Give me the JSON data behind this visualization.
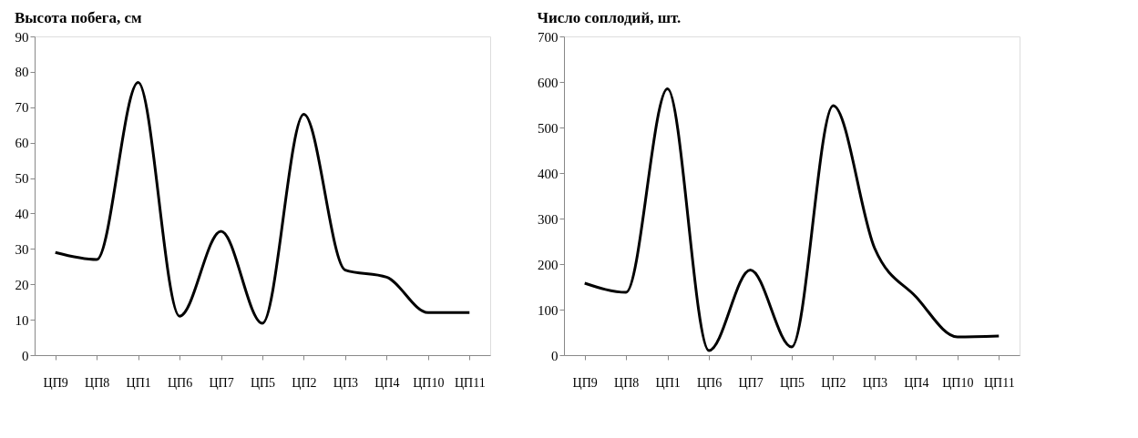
{
  "chart_data": [
    {
      "type": "line",
      "title": "Высота побега, см",
      "categories": [
        "ЦП9",
        "ЦП8",
        "ЦП1",
        "ЦП6",
        "ЦП7",
        "ЦП5",
        "ЦП2",
        "ЦП3",
        "ЦП4",
        "ЦП10",
        "ЦП11"
      ],
      "series": [
        {
          "color": "#000000",
          "values": [
            29,
            27,
            77,
            11,
            35,
            9,
            68,
            24,
            22,
            12,
            12
          ]
        }
      ],
      "ylim": [
        0,
        90
      ],
      "yticks": [
        0,
        10,
        20,
        30,
        40,
        50,
        60,
        70,
        80,
        90
      ],
      "grid": false,
      "marker": "none",
      "line_style": "solid"
    },
    {
      "type": "line",
      "title": "Число соплодий, шт.",
      "categories": [
        "ЦП9",
        "ЦП8",
        "ЦП1",
        "ЦП6",
        "ЦП7",
        "ЦП5",
        "ЦП2",
        "ЦП3",
        "ЦП4",
        "ЦП10",
        "ЦП11"
      ],
      "series": [
        {
          "color": "#000000",
          "values": [
            158,
            138,
            585,
            10,
            187,
            18,
            548,
            235,
            128,
            40,
            42
          ]
        }
      ],
      "ylim": [
        0,
        700
      ],
      "yticks": [
        0,
        100,
        200,
        300,
        400,
        500,
        600,
        700
      ],
      "grid": false,
      "marker": "none",
      "line_style": "solid"
    }
  ]
}
